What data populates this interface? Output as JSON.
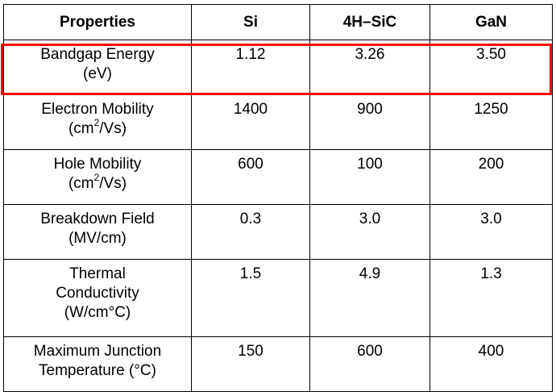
{
  "table": {
    "headers": [
      "Properties",
      "Si",
      "4H–SiC",
      "GaN"
    ],
    "rows": [
      {
        "property": {
          "line1": "Bandgap Energy",
          "line2": "(eV)"
        },
        "si": "1.12",
        "sic": "3.26",
        "gan": "3.50"
      },
      {
        "property": {
          "line1": "Electron Mobility",
          "unit_pre": "(cm",
          "unit_sup": "2",
          "unit_post": "/Vs)"
        },
        "si": "1400",
        "sic": "900",
        "gan": "1250"
      },
      {
        "property": {
          "line1": "Hole Mobility",
          "unit_pre": "(cm",
          "unit_sup": "2",
          "unit_post": "/Vs)"
        },
        "si": "600",
        "sic": "100",
        "gan": "200"
      },
      {
        "property": {
          "line1": "Breakdown Field",
          "line2": "(MV/cm)"
        },
        "si": "0.3",
        "sic": "3.0",
        "gan": "3.0"
      },
      {
        "property": {
          "line1": "Thermal",
          "line2": "Conductivity",
          "line3": "(W/cm°C)"
        },
        "si": "1.5",
        "sic": "4.9",
        "gan": "1.3"
      },
      {
        "property": {
          "line1": "Maximum Junction",
          "line2": "Temperature (°C)"
        },
        "si": "150",
        "sic": "600",
        "gan": "400"
      }
    ]
  },
  "highlight": {
    "row": "Bandgap Energy",
    "color": "#ff0000"
  }
}
